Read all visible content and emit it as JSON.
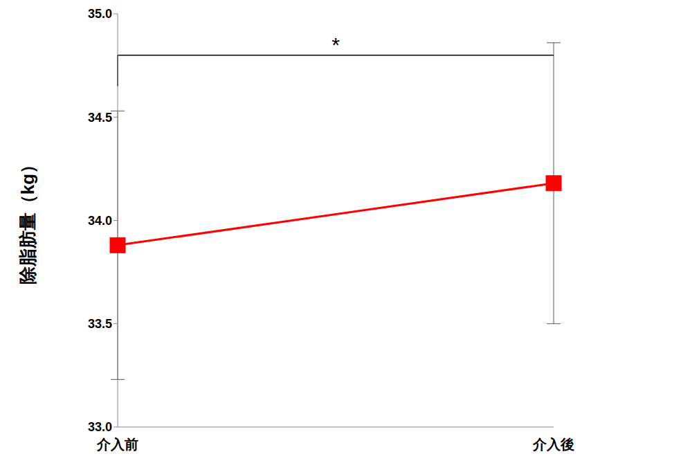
{
  "chart_data": {
    "type": "line",
    "categories": [
      "介入前",
      "介入後"
    ],
    "values": [
      33.88,
      34.18
    ],
    "error": [
      0.65,
      0.68
    ],
    "color": "#ff0000",
    "marker": "square",
    "ylabel": "除脂肪量（kg）",
    "ylim": [
      33,
      35
    ],
    "yticks": [
      {
        "value": 33,
        "label": "33.0"
      },
      {
        "value": 33.5,
        "label": "33.5"
      },
      {
        "value": 34,
        "label": "34.0"
      },
      {
        "value": 34.5,
        "label": "34.5"
      },
      {
        "value": 35,
        "label": "35.0"
      }
    ],
    "annotation": "*",
    "grid": false
  }
}
